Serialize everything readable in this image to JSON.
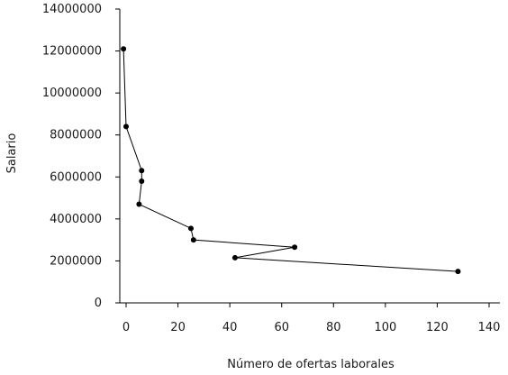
{
  "chart_data": {
    "type": "line",
    "title": "",
    "xlabel": "Número de ofertas laborales",
    "ylabel": "Salario",
    "xlim": [
      -2,
      142
    ],
    "ylim": [
      0,
      14000000
    ],
    "x_ticks": [
      0,
      20,
      40,
      60,
      80,
      100,
      120,
      140
    ],
    "y_ticks": [
      0,
      2000000,
      4000000,
      6000000,
      8000000,
      10000000,
      12000000,
      14000000
    ],
    "x_tick_labels": [
      "0",
      "20",
      "40",
      "60",
      "80",
      "100",
      "120",
      "140"
    ],
    "y_tick_labels": [
      "0",
      "2000000",
      "4000000",
      "6000000",
      "8000000",
      "10000000",
      "12000000",
      "14000000"
    ],
    "grid": false,
    "series": [
      {
        "points": [
          {
            "x": -1,
            "y": 12100000
          },
          {
            "x": 0,
            "y": 8400000
          },
          {
            "x": 6,
            "y": 6300000
          },
          {
            "x": 6,
            "y": 5800000
          },
          {
            "x": 5,
            "y": 4700000
          },
          {
            "x": 25,
            "y": 3550000
          },
          {
            "x": 26,
            "y": 3000000
          },
          {
            "x": 65,
            "y": 2650000
          },
          {
            "x": 42,
            "y": 2150000
          },
          {
            "x": 128,
            "y": 1500000
          }
        ]
      }
    ]
  }
}
